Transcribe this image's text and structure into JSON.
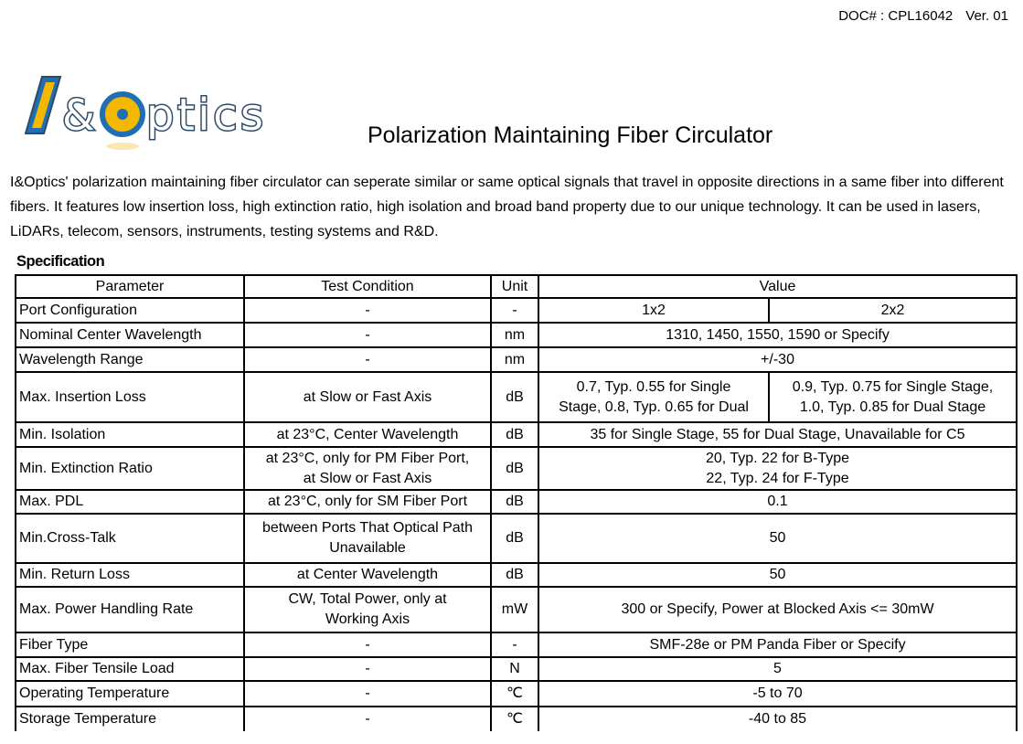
{
  "header": {
    "doc_number": "DOC# : CPL16042",
    "version": "Ver. 01"
  },
  "logo": {
    "text": "I&Optics",
    "colors": {
      "blue": "#1f6fb5",
      "yellow": "#f5b800",
      "outline": "#2c4a6b"
    }
  },
  "title": "Polarization Maintaining Fiber Circulator",
  "description": "I&Optics' polarization maintaining fiber circulator can seperate similar or same optical signals that travel in opposite directions in a same fiber into different fibers. It features low insertion loss, high extinction ratio, high isolation and broad band property due to our unique technology. It can be used in lasers, LiDARs, telecom, sensors, instruments, testing systems and R&D.",
  "spec_heading": "Specification",
  "table": {
    "headers": [
      "Parameter",
      "Test Condition",
      "Unit",
      "Value"
    ],
    "rows": [
      {
        "param": "Port Configuration",
        "cond": "-",
        "unit": "-",
        "values": [
          "1x2",
          "2x2"
        ]
      },
      {
        "param": "Nominal Center Wavelength",
        "cond": "-",
        "unit": "nm",
        "value": "1310, 1450, 1550, 1590 or Specify"
      },
      {
        "param": "Wavelength Range",
        "cond": "-",
        "unit": "nm",
        "value": "+/-30"
      },
      {
        "param": "Max. Insertion Loss",
        "cond": "at Slow or Fast Axis",
        "unit": "dB",
        "values": [
          "0.7, Typ. 0.55 for Single\nStage, 0.8, Typ. 0.65 for Dual",
          "0.9, Typ. 0.75 for Single Stage,\n1.0, Typ. 0.85 for Dual Stage"
        ]
      },
      {
        "param": "Min. Isolation",
        "cond": "at 23°C, Center Wavelength",
        "unit": "dB",
        "value": "35 for Single Stage, 55 for Dual Stage, Unavailable for C5"
      },
      {
        "param": "Min. Extinction Ratio",
        "cond": "at 23°C, only for PM Fiber Port,\nat Slow or Fast Axis",
        "unit": "dB",
        "value": "20, Typ. 22 for B-Type\n22, Typ. 24 for F-Type"
      },
      {
        "param": "Max. PDL",
        "cond": "at 23°C, only for SM Fiber Port",
        "unit": "dB",
        "value": "0.1"
      },
      {
        "param": "Min.Cross-Talk",
        "cond": "between Ports That Optical Path\nUnavailable",
        "unit": "dB",
        "value": "50"
      },
      {
        "param": "Min. Return Loss",
        "cond": "at Center Wavelength",
        "unit": "dB",
        "value": "50"
      },
      {
        "param": "Max. Power Handling Rate",
        "cond": "CW, Total Power, only at\nWorking Axis",
        "unit": "mW",
        "value": "300 or Specify, Power at Blocked Axis <= 30mW"
      },
      {
        "param": "Fiber Type",
        "cond": "-",
        "unit": "-",
        "value": "SMF-28e or PM Panda Fiber or Specify"
      },
      {
        "param": "Max. Fiber Tensile Load",
        "cond": "-",
        "unit": "N",
        "value": "5"
      },
      {
        "param": "Operating Temperature",
        "cond": "-",
        "unit": "℃",
        "value": "-5 to 70"
      },
      {
        "param": "Storage Temperature",
        "cond": "-",
        "unit": "℃",
        "value": "-40 to 85"
      }
    ]
  }
}
